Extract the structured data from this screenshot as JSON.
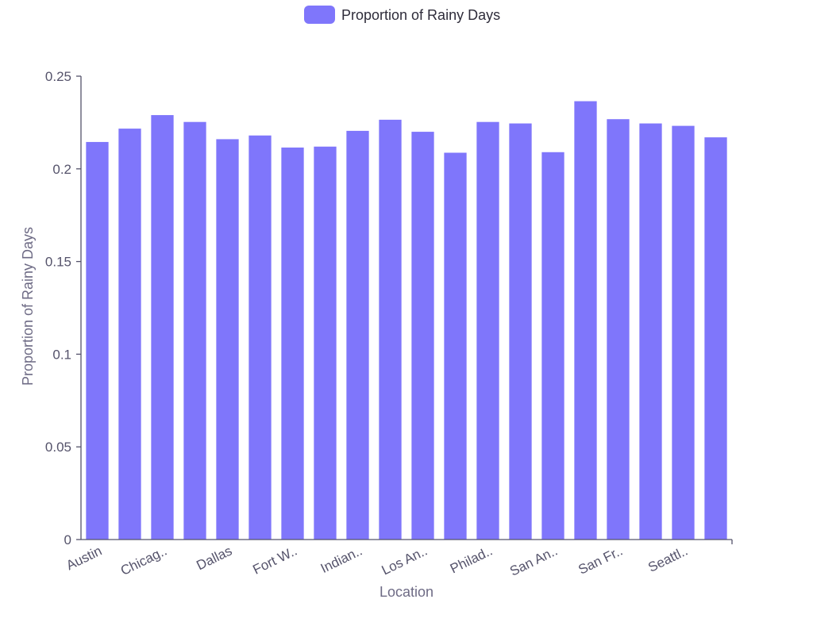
{
  "chart_data": {
    "type": "bar",
    "title": "",
    "xlabel": "Location",
    "ylabel": "Proportion of Rainy Days",
    "ylim": [
      0,
      0.25
    ],
    "yticks": [
      "0",
      "0.05",
      "0.1",
      "0.15",
      "0.2",
      "0.25"
    ],
    "legend": {
      "position": "top-center",
      "entries": [
        "Proportion of Rainy Days"
      ]
    },
    "grid": false,
    "color": "#7f76fb",
    "categories": [
      "Austin",
      "",
      "Chicag..",
      "",
      "Dallas",
      "",
      "Fort W..",
      "",
      "Indian..",
      "",
      "Los An..",
      "",
      "Philad..",
      "",
      "San An..",
      "",
      "San Fr..",
      "",
      "Seattl..",
      ""
    ],
    "series": [
      {
        "name": "Proportion of Rainy Days",
        "values": [
          0.2145,
          0.2217,
          0.229,
          0.2253,
          0.216,
          0.218,
          0.2115,
          0.212,
          0.2205,
          0.2265,
          0.22,
          0.2087,
          0.2253,
          0.2245,
          0.209,
          0.2365,
          0.2268,
          0.2245,
          0.2232,
          0.217
        ]
      }
    ]
  }
}
